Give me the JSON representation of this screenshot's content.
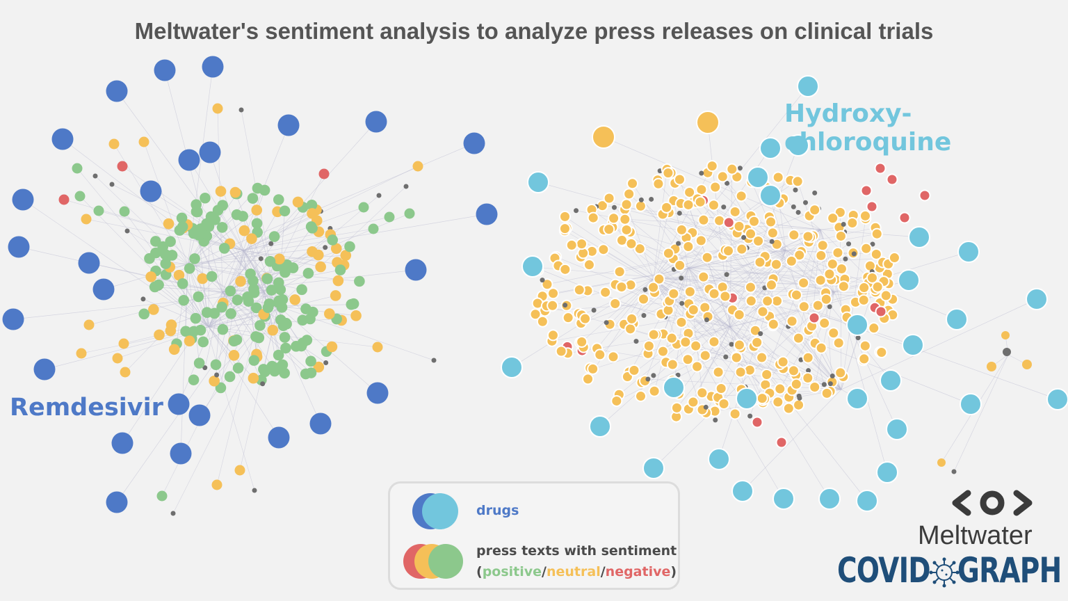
{
  "title": "Meltwater's sentiment analysis to analyze press releases on clinical trials",
  "clusters": {
    "remdesivir": "Remdesivir",
    "hydroxychloroquine": "Hydroxy-chloroquine"
  },
  "legend": {
    "drugs_label": "drugs",
    "press_label": "press texts with sentiment",
    "open_paren": "(",
    "positive": "positive",
    "slash1": "/",
    "neutral": "neutral",
    "slash2": "/",
    "negative": "negative",
    "close_paren": ")"
  },
  "brand": {
    "company": "Meltwater",
    "covid": "COVID",
    "graph": "GRAPH",
    "logo_icon": "meltwater-eye-icon",
    "virus_icon": "virus-icon"
  },
  "colors": {
    "remdesivir_drug": "#4e79c7",
    "hcq_drug": "#72c6dd",
    "positive": "#8cc88c",
    "neutral": "#f5c058",
    "negative": "#e06666",
    "edge_node": "#6e6e6e",
    "edge": "#b9b9cf"
  },
  "graph_stats": {
    "remdesivir_drugs": 31,
    "hcq_drugs": 36
  }
}
